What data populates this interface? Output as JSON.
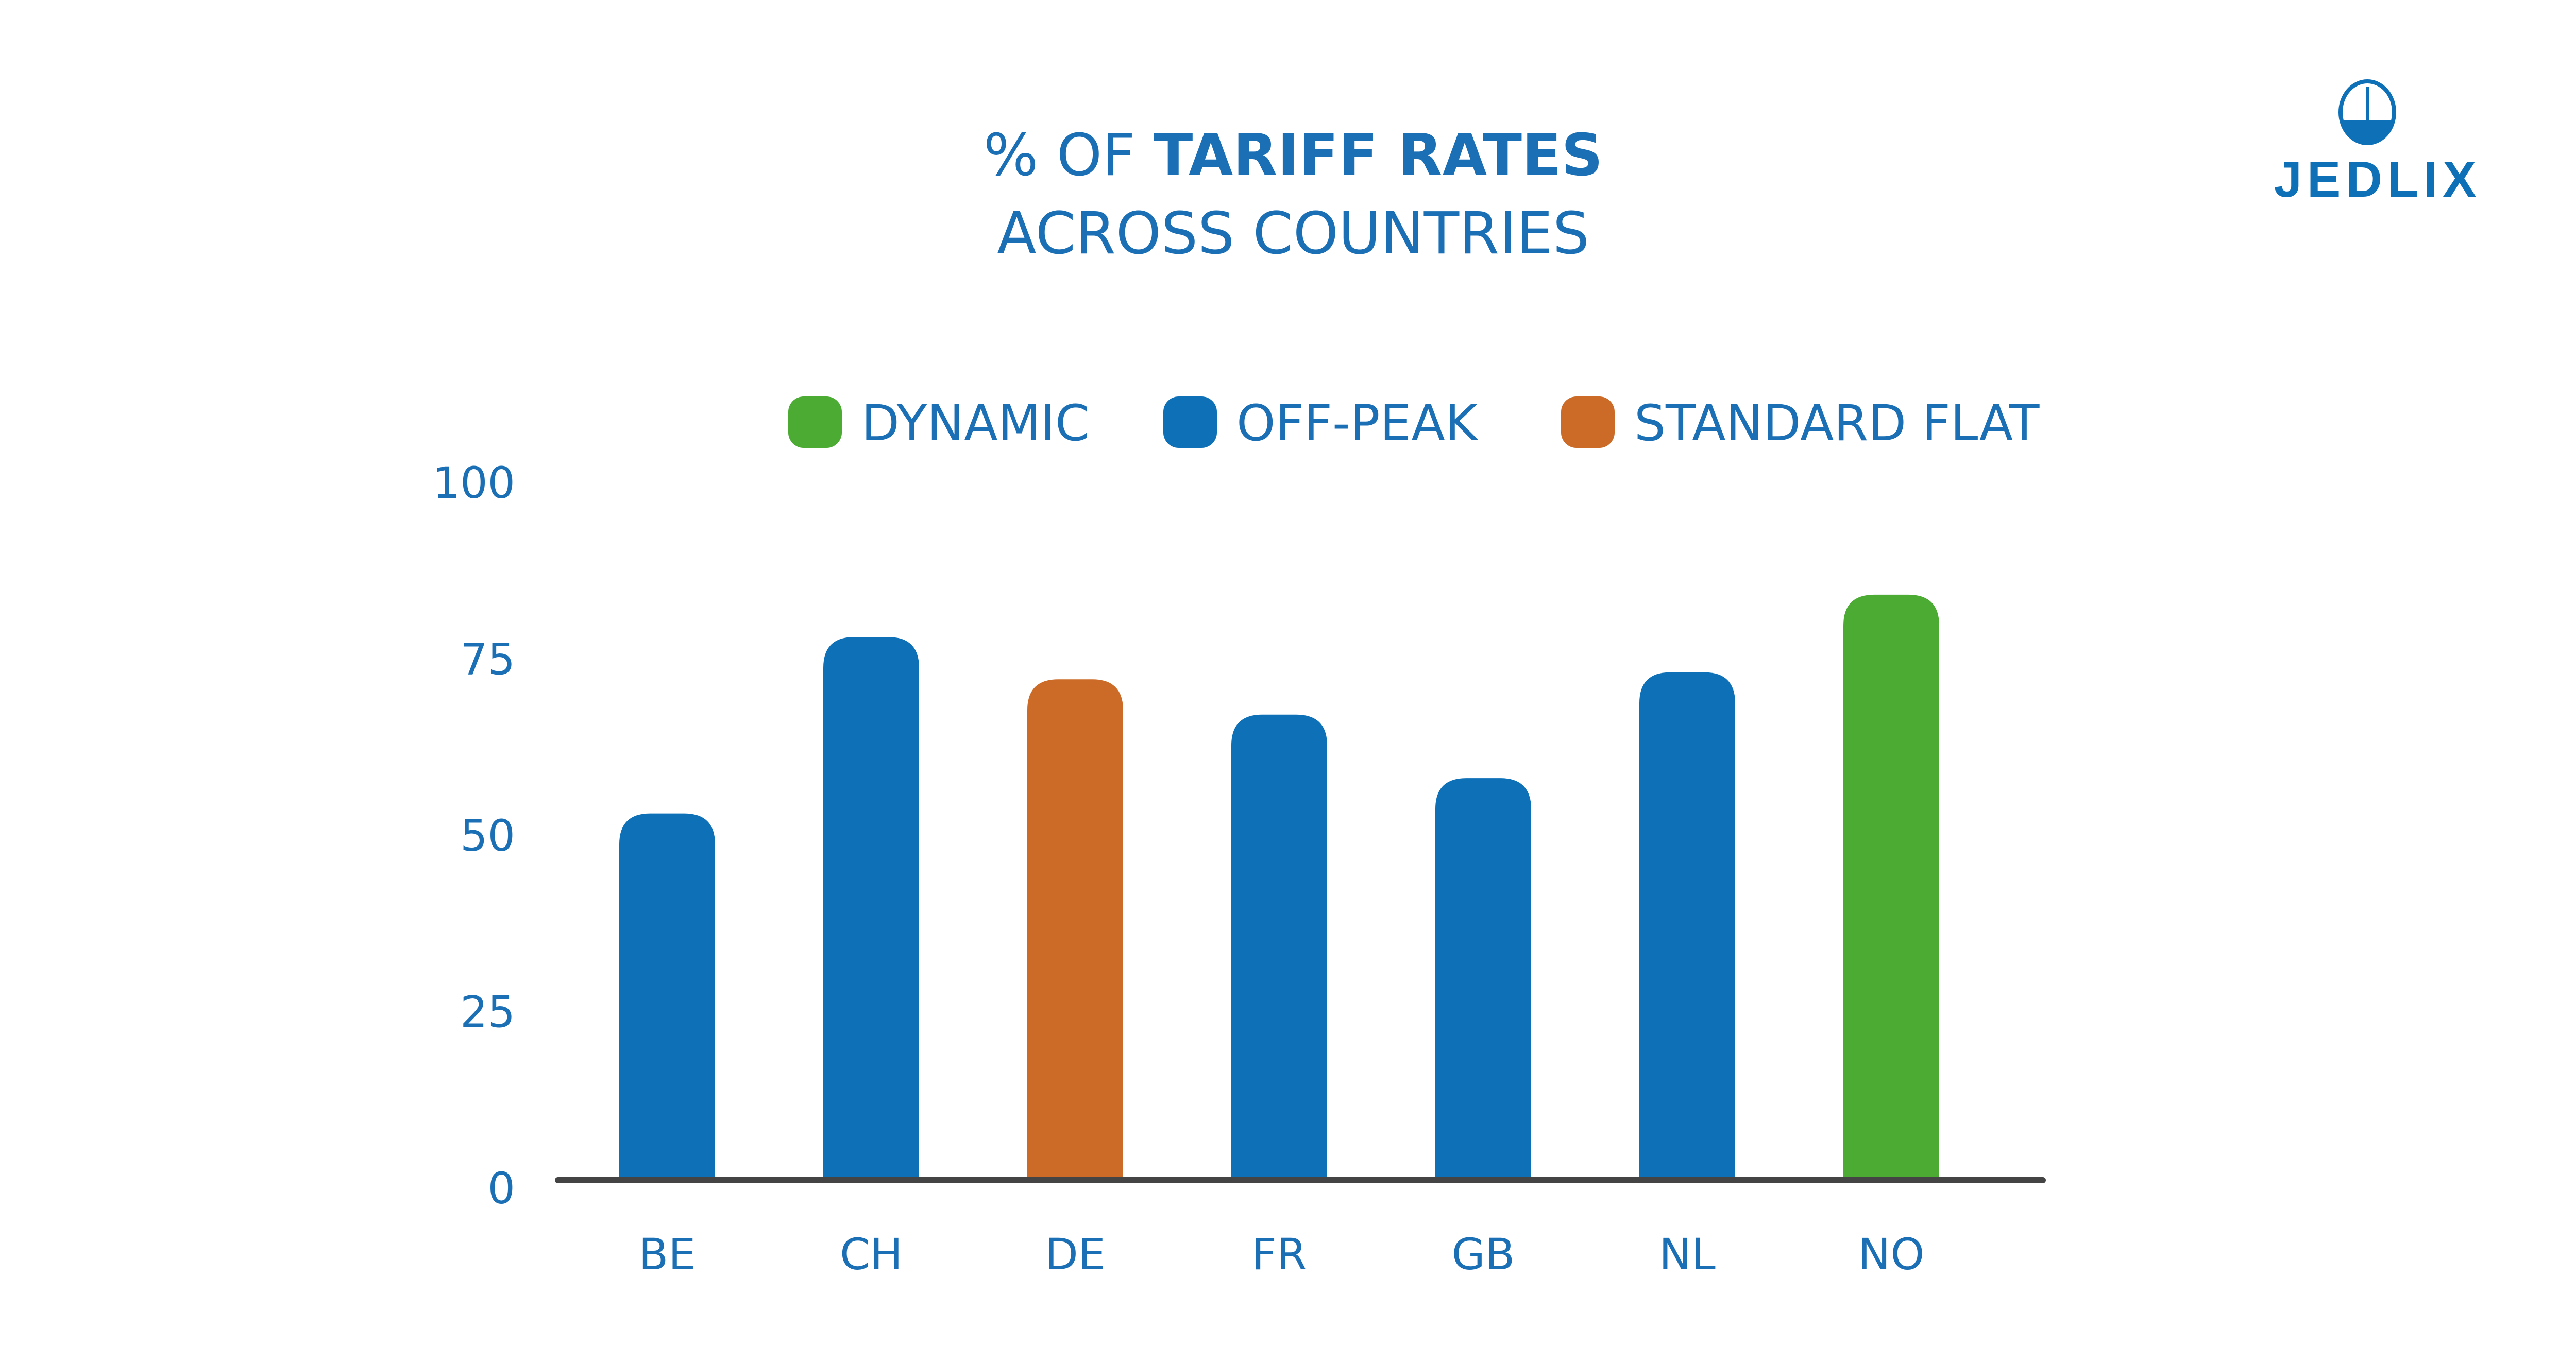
{
  "chart_data": {
    "type": "bar",
    "title_prefix": "% OF ",
    "title_bold": "TARIFF RATES",
    "subtitle": "ACROSS COUNTRIES",
    "categories": [
      "BE",
      "CH",
      "DE",
      "FR",
      "GB",
      "NL",
      "NO"
    ],
    "values": [
      52,
      77,
      71,
      66,
      57,
      72,
      83
    ],
    "bar_types": [
      "OFF-PEAK",
      "OFF-PEAK",
      "STANDARD FLAT",
      "OFF-PEAK",
      "OFF-PEAK",
      "OFF-PEAK",
      "DYNAMIC"
    ],
    "legend": [
      {
        "label": "DYNAMIC",
        "color": "#4bab33"
      },
      {
        "label": "OFF-PEAK",
        "color": "#0e71b8"
      },
      {
        "label": "STANDARD FLAT",
        "color": "#cc6b27"
      }
    ],
    "legend_placement": "top",
    "yticks": [
      0,
      25,
      50,
      75,
      100
    ],
    "ylim": [
      0,
      100
    ],
    "xlabel": "",
    "ylabel": "",
    "grid": false
  },
  "brand": {
    "logo_text": "JEDLIX",
    "color": "#0e71b8"
  },
  "text_color": "#1a6fb5",
  "axis_color": "#444444"
}
